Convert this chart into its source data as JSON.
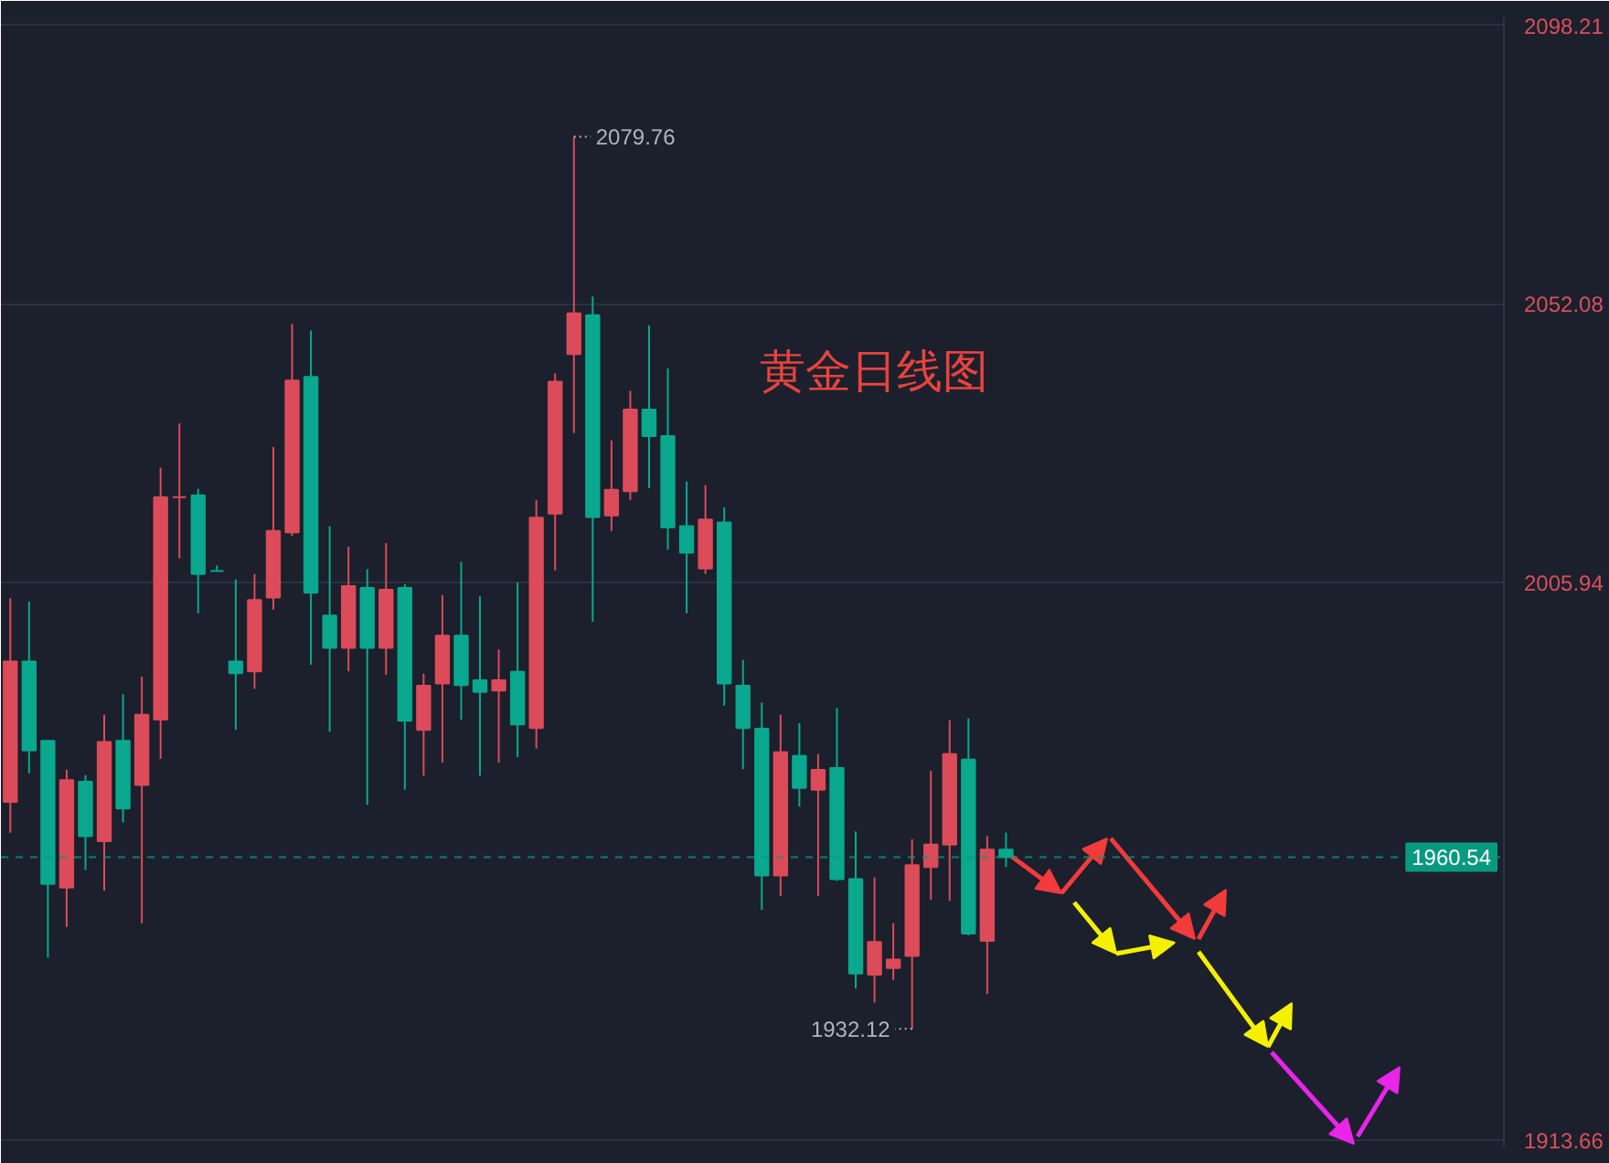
{
  "chart_data": {
    "type": "candlestick",
    "title": "黄金日线图",
    "categories": [
      null,
      null,
      null,
      null,
      null,
      null,
      null,
      null,
      null,
      null,
      null,
      null,
      null,
      null,
      null,
      null,
      null,
      null,
      null,
      null,
      null,
      null,
      null,
      null,
      null,
      null,
      null,
      null,
      null,
      null,
      null,
      null,
      null,
      null,
      null,
      null,
      null,
      null,
      null,
      null,
      null,
      null,
      null,
      null,
      null,
      null,
      null,
      null,
      null,
      null,
      null,
      null,
      null,
      null,
      null,
      null,
      null,
      null,
      null,
      null,
      null,
      null,
      null,
      null,
      null,
      null,
      null,
      null,
      null,
      null,
      null,
      null,
      null,
      null,
      null,
      null,
      null,
      null,
      null,
      null
    ],
    "ohlc": [
      [
        1969.7,
        2003.4,
        1964.6,
        1992.9
      ],
      [
        1992.9,
        2002.8,
        1974.4,
        1978.2
      ],
      [
        1979.8,
        1979.8,
        1943.9,
        1956.1
      ],
      [
        1955.5,
        1975.0,
        1949.0,
        1973.3
      ],
      [
        1973.0,
        1974.1,
        1958.4,
        1964.0
      ],
      [
        1963.2,
        1984.1,
        1955.0,
        1979.6
      ],
      [
        1979.8,
        1987.5,
        1966.3,
        1968.6
      ],
      [
        1972.5,
        1990.4,
        1949.6,
        1984.1
      ],
      [
        1983.3,
        2025.0,
        1976.8,
        2020.1
      ],
      [
        2020.1,
        2032.3,
        2010.0,
        2020.1
      ],
      [
        2020.4,
        2021.5,
        2000.9,
        2007.4
      ],
      [
        2007.9,
        2008.8,
        2007.9,
        2007.9
      ],
      [
        1992.9,
        2006.5,
        1981.6,
        1991.0
      ],
      [
        1991.3,
        2007.4,
        1988.4,
        2003.1
      ],
      [
        2003.5,
        2028.4,
        2001.5,
        2014.5
      ],
      [
        2014.3,
        2048.8,
        2013.7,
        2039.4
      ],
      [
        2040.0,
        2047.7,
        1992.4,
        2004.3
      ],
      [
        2000.5,
        2015.3,
        1981.3,
        1995.2
      ],
      [
        1995.2,
        2011.9,
        1991.3,
        2005.4
      ],
      [
        2005.1,
        2008.2,
        1969.2,
        1995.2
      ],
      [
        1995.2,
        2012.5,
        1990.7,
        2004.8
      ],
      [
        2005.1,
        2005.7,
        1971.7,
        1983.1
      ],
      [
        1981.6,
        1990.9,
        1974.0,
        1988.9
      ],
      [
        1989.3,
        2003.9,
        1976.2,
        1997.2
      ],
      [
        1997.2,
        2009.4,
        1983.3,
        1989.0
      ],
      [
        1989.8,
        2003.7,
        1974.0,
        1987.9
      ],
      [
        1988.1,
        1994.9,
        1976.2,
        1989.8
      ],
      [
        1991.2,
        2006.0,
        1977.1,
        1982.5
      ],
      [
        1981.9,
        2019.6,
        1978.5,
        2016.7
      ],
      [
        2017.4,
        2040.6,
        2008.0,
        2039.2
      ],
      [
        2043.8,
        2079.76,
        2030.7,
        2050.5
      ],
      [
        2050.2,
        2053.3,
        1999.5,
        2016.8
      ],
      [
        2017.1,
        2029.5,
        2014.5,
        2021.3
      ],
      [
        2021.1,
        2037.7,
        2019.6,
        2034.6
      ],
      [
        2034.6,
        2048.5,
        2021.6,
        2030.2
      ],
      [
        2030.2,
        2041.4,
        2011.4,
        2015.1
      ],
      [
        2015.3,
        2022.7,
        2000.9,
        2010.9
      ],
      [
        2008.3,
        2022.1,
        2007.4,
        2016.4
      ],
      [
        2015.9,
        2018.4,
        1985.6,
        1989.3
      ],
      [
        1988.9,
        1993.2,
        1975.1,
        1981.9
      ],
      [
        1981.8,
        1986.1,
        1951.8,
        1957.5
      ],
      [
        1957.5,
        1984.1,
        1954.1,
        1977.9
      ],
      [
        1977.3,
        1982.7,
        1968.9,
        1972.0
      ],
      [
        1971.7,
        1977.6,
        1954.1,
        1975.0
      ],
      [
        1975.3,
        1985.2,
        1956.6,
        1956.9
      ],
      [
        1956.9,
        1964.8,
        1938.8,
        1941.3
      ],
      [
        1941.1,
        1957.2,
        1936.5,
        1946.5
      ],
      [
        1942.2,
        1949.6,
        1940.2,
        1943.6
      ],
      [
        1944.2,
        1963.5,
        1932.12,
        1959.2
      ],
      [
        1958.9,
        1974.8,
        1953.5,
        1962.6
      ],
      [
        1962.6,
        1983.2,
        1953.3,
        1977.6
      ],
      [
        1976.7,
        1983.5,
        1947.6,
        1947.9
      ],
      [
        1946.7,
        1964.0,
        1937.9,
        1961.8
      ],
      [
        1961.8,
        1964.6,
        1958.9,
        1960.54
      ],
      null,
      null,
      null,
      null,
      null,
      null,
      null,
      null,
      null,
      null,
      null,
      null,
      null,
      null,
      null,
      null,
      null,
      null,
      null,
      null,
      null,
      null,
      null,
      null,
      null,
      null
    ],
    "colors": [
      "#dc4b59",
      "#0aa88e",
      "#0aa88e",
      "#dc4b59",
      "#0aa88e",
      "#dc4b59",
      "#0aa88e",
      "#dc4b59",
      "#dc4b59",
      "#dc4b59",
      "#0aa88e",
      "#0aa88e",
      "#0aa88e",
      "#dc4b59",
      "#dc4b59",
      "#dc4b59",
      "#0aa88e",
      "#0aa88e",
      "#dc4b59",
      "#0aa88e",
      "#dc4b59",
      "#0aa88e",
      "#dc4b59",
      "#dc4b59",
      "#0aa88e",
      "#0aa88e",
      "#dc4b59",
      "#0aa88e",
      "#dc4b59",
      "#dc4b59",
      "#dc4b59",
      "#0aa88e",
      "#dc4b59",
      "#dc4b59",
      "#0aa88e",
      "#0aa88e",
      "#0aa88e",
      "#dc4b59",
      "#0aa88e",
      "#0aa88e",
      "#0aa88e",
      "#dc4b59",
      "#0aa88e",
      "#dc4b59",
      "#0aa88e",
      "#0aa88e",
      "#dc4b59",
      "#dc4b59",
      "#dc4b59",
      "#dc4b59",
      "#dc4b59",
      "#0aa88e",
      "#dc4b59",
      "#0aa88e",
      null,
      null,
      null,
      null,
      null,
      null,
      null,
      null,
      null,
      null,
      null,
      null,
      null,
      null,
      null,
      null,
      null,
      null,
      null,
      null,
      null,
      null,
      null,
      null,
      null,
      null
    ],
    "annotations": [
      "2079.76",
      "1932.12"
    ],
    "ref_lines": [
      {
        "axis": "y",
        "value": 1960.54,
        "label": "1960.54",
        "color": "#089981",
        "line_style": "dashed"
      }
    ],
    "ylim": [
      1912.5,
      2099.5
    ],
    "yticks": [
      1913.66,
      2005.94,
      2052.08,
      2098.21
    ],
    "tick_labels": "y",
    "grid": "y"
  }
}
